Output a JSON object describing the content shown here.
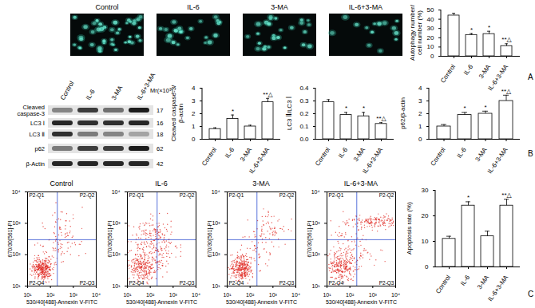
{
  "panel_A": {
    "letter": "A",
    "images": [
      "Control",
      "IL-6",
      "3-MA",
      "IL-6+3-MA"
    ]
  },
  "panel_B": {
    "letter": "B",
    "lanes": [
      "Control",
      "IL-6",
      "3-MA",
      "IL-6+3-MA"
    ],
    "bands": [
      "Cleaved caspase-3",
      "LC3 Ⅰ",
      "LC3 Ⅱ",
      "p62",
      "β-Actin"
    ],
    "mr_label": "Mr(×10³)",
    "mr_values": [
      17,
      16,
      18,
      62,
      42
    ]
  },
  "panel_C": {
    "letter": "C",
    "flow_plots": {
      "titles": [
        "Control",
        "IL-6",
        "3-MA",
        "IL-6+3-MA"
      ],
      "quadrants": [
        "P2-Q1",
        "P2-Q2",
        "P2-Q3",
        "P2-Q4"
      ],
      "x_label": "530/40[488]-Annexin Ⅴ-FITC",
      "y_label": "670/30[561]-PI",
      "log": true,
      "xlim": [
        10,
        10000
      ],
      "ylim": [
        10,
        10000
      ],
      "xticks": [
        {
          "value": 10,
          "label": "10¹"
        },
        {
          "value": 100,
          "label": "10²"
        },
        {
          "value": 1000,
          "label": "10³"
        },
        {
          "value": 10000,
          "label": "10⁴"
        }
      ],
      "yticks": [
        {
          "value": 10,
          "label": "10¹"
        },
        {
          "value": 100,
          "label": "10²"
        },
        {
          "value": 1000,
          "label": "10³"
        },
        {
          "value": 10000,
          "label": "10⁴"
        }
      ],
      "gate": {
        "x": 200,
        "y": 300
      }
    }
  },
  "chart_data": [
    {
      "type": "bar",
      "y_label": "Autophagy number/ cell number (%)",
      "categories": [
        "Control",
        "IL-6",
        "3-MA",
        "IL-6+3-MA"
      ],
      "values": [
        44,
        23,
        24,
        11
      ],
      "errors": [
        2.5,
        1.5,
        3,
        2.5
      ],
      "annotations": [
        null,
        "*",
        "*",
        "**△"
      ],
      "ylim": [
        0,
        50
      ],
      "yticks": [
        0,
        10,
        20,
        30,
        40,
        50
      ],
      "color": "#ffffff"
    },
    {
      "type": "bar",
      "y_label": "Cleaved caspase-3/ β-actin",
      "categories": [
        "Control",
        "IL-6",
        "3-MA",
        "IL-6+3-MA"
      ],
      "values": [
        0.8,
        1.6,
        1.0,
        2.9
      ],
      "errors": [
        0.1,
        0.3,
        0.1,
        0.3
      ],
      "annotations": [
        null,
        "*",
        null,
        "**△"
      ],
      "ylim": [
        0,
        4
      ],
      "yticks": [
        0,
        1,
        2,
        3,
        4
      ],
      "color": "#ffffff"
    },
    {
      "type": "bar",
      "y_label": "LC3 Ⅱ/LC3 Ⅰ",
      "categories": [
        "Control",
        "IL-6",
        "3-MA",
        "IL-6+3-MA"
      ],
      "values": [
        0.29,
        0.19,
        0.18,
        0.12
      ],
      "errors": [
        0.02,
        0.02,
        0.03,
        0.01
      ],
      "annotations": [
        null,
        "*",
        "*",
        "**△"
      ],
      "ylim": [
        0,
        0.4
      ],
      "yticks": [
        {
          "value": 0,
          "label": "0.0"
        },
        0.1,
        0.2,
        0.3,
        0.4
      ],
      "color": "#ffffff"
    },
    {
      "type": "bar",
      "y_label": "p62/β-actin",
      "categories": [
        "Control",
        "IL-6",
        "3-MA",
        "IL-6+3-MA"
      ],
      "values": [
        1.0,
        1.9,
        2.0,
        3.0
      ],
      "errors": [
        0.15,
        0.2,
        0.2,
        0.45
      ],
      "annotations": [
        null,
        "*",
        "*",
        "**△"
      ],
      "ylim": [
        0,
        4
      ],
      "yticks": [
        0,
        1,
        2,
        3,
        4
      ],
      "color": "#ffffff"
    },
    {
      "type": "bar",
      "y_label": "Apoptosis rate (%)",
      "categories": [
        "Control",
        "IL-6",
        "3-MA",
        "IL-6+3-MA"
      ],
      "values": [
        11,
        24,
        12,
        24
      ],
      "errors": [
        1,
        1.5,
        2,
        2.5
      ],
      "annotations": [
        null,
        "*",
        null,
        "**△"
      ],
      "ylim": [
        0,
        30
      ],
      "yticks": [
        0,
        10,
        20,
        30
      ],
      "color": "#ffffff"
    }
  ]
}
